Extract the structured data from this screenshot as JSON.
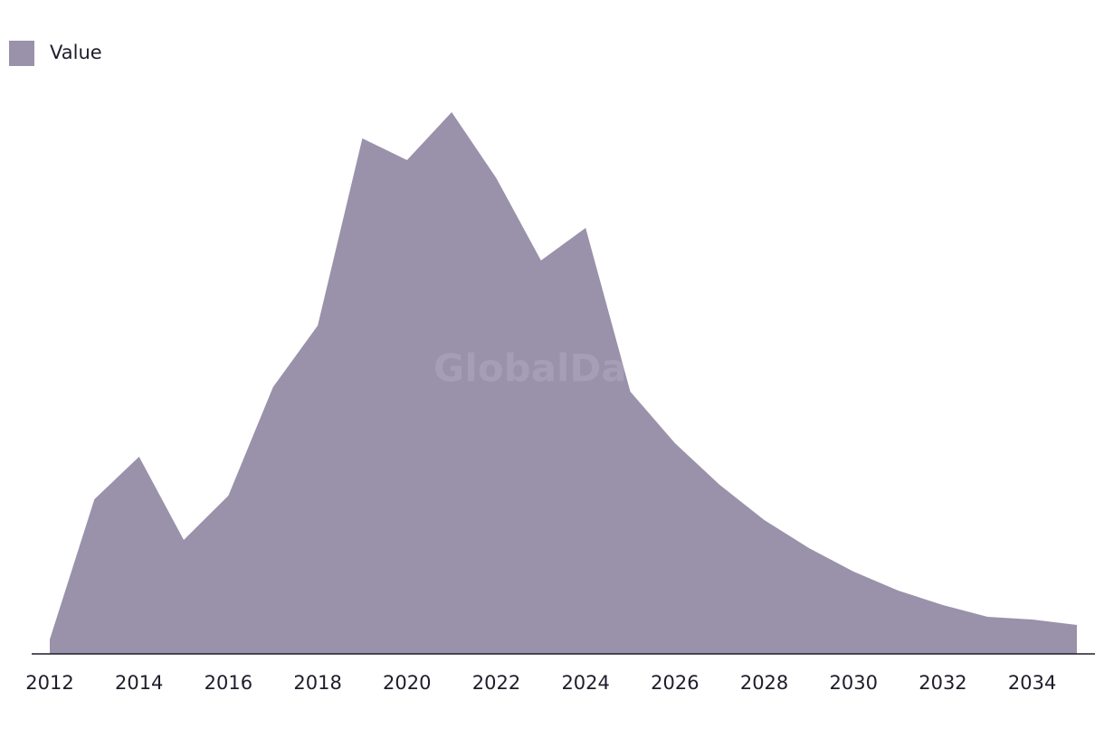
{
  "chart_data": {
    "type": "area",
    "x": [
      2012,
      2013,
      2014,
      2015,
      2016,
      2017,
      2018,
      2019,
      2020,
      2021,
      2022,
      2023,
      2024,
      2025,
      2026,
      2027,
      2028,
      2029,
      2030,
      2031,
      2032,
      2033,
      2034,
      2035
    ],
    "series": [
      {
        "name": "Value",
        "color": "#9a91aa",
        "values": [
          16,
          171,
          218,
          126,
          175,
          295,
          363,
          570,
          546,
          599,
          526,
          435,
          471,
          290,
          233,
          187,
          148,
          117,
          91,
          70,
          54,
          41,
          38,
          32
        ]
      }
    ],
    "xlim": [
      2012,
      2035
    ],
    "xticks": [
      2012,
      2014,
      2016,
      2018,
      2020,
      2022,
      2024,
      2026,
      2028,
      2030,
      2032,
      2034
    ],
    "ylim": [
      0,
      600
    ],
    "legend": "top-left",
    "watermark": "GlobalData"
  }
}
